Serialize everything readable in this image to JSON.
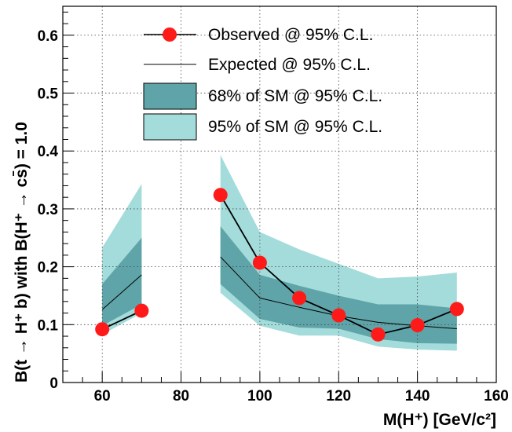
{
  "chart_data": {
    "type": "line",
    "xlabel": "M(H⁺) [GeV/c²]",
    "ylabel": "B(t → H⁺ b) with B(H⁺ → cs̄) = 1.0",
    "xlim": [
      50,
      160
    ],
    "ylim": [
      0,
      0.65
    ],
    "x_ticks": [
      "60",
      "80",
      "100",
      "120",
      "140",
      "160"
    ],
    "y_ticks": [
      "0",
      "0.1",
      "0.2",
      "0.3",
      "0.4",
      "0.5",
      "0.6"
    ],
    "grid": true,
    "legend_position": "top-right",
    "segments": [
      {
        "x": [
          60,
          70
        ],
        "observed": [
          0.092,
          0.124
        ],
        "expected": [
          0.126,
          0.186
        ],
        "band68_low": [
          0.098,
          0.135
        ],
        "band68_high": [
          0.17,
          0.25
        ],
        "band95_low": [
          0.083,
          0.12
        ],
        "band95_high": [
          0.233,
          0.343
        ]
      },
      {
        "x": [
          90,
          100,
          110,
          120,
          130,
          140,
          150
        ],
        "observed": [
          0.324,
          0.207,
          0.146,
          0.116,
          0.083,
          0.099,
          0.127
        ],
        "expected": [
          0.217,
          0.146,
          0.13,
          0.115,
          0.104,
          0.098,
          0.093
        ],
        "band68_low": [
          0.17,
          0.11,
          0.095,
          0.093,
          0.075,
          0.068,
          0.067
        ],
        "band68_high": [
          0.27,
          0.186,
          0.167,
          0.15,
          0.135,
          0.135,
          0.128
        ],
        "band95_low": [
          0.155,
          0.098,
          0.081,
          0.081,
          0.062,
          0.057,
          0.055
        ],
        "band95_high": [
          0.393,
          0.26,
          0.23,
          0.205,
          0.18,
          0.183,
          0.19
        ]
      }
    ],
    "legend": [
      {
        "label": "Observed @ 95% C.L.",
        "kind": "marker-line"
      },
      {
        "label": "Expected @ 95% C.L.",
        "kind": "line"
      },
      {
        "label": "68% of SM @ 95% C.L.",
        "kind": "box",
        "color": "#5fa4a8"
      },
      {
        "label": "95% of SM @ 95% C.L.",
        "kind": "box",
        "color": "#a3dcdb"
      }
    ],
    "colors": {
      "band68": "#5fa4a8",
      "band95": "#a3dcdb",
      "observed_marker": "#ff1a1a",
      "line": "#000000"
    }
  }
}
